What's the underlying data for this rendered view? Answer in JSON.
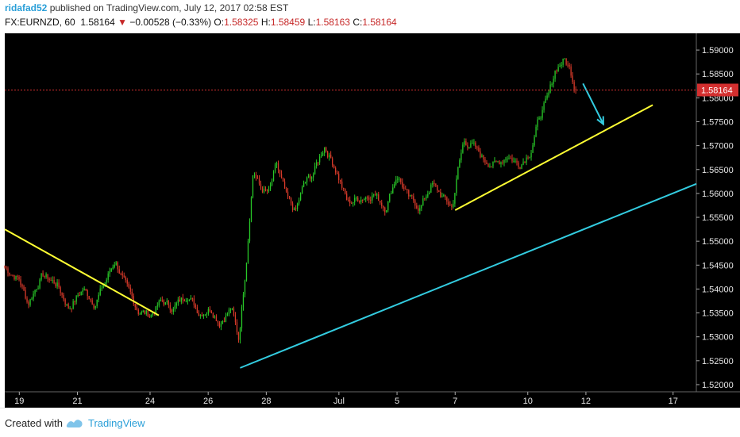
{
  "header": {
    "author": "ridafad52",
    "published": " published on TradingView.com, July 12, 2017 02:58 EST",
    "symbol": "FX:EURNZD, 60",
    "last": "1.58164",
    "arrow": "▼",
    "change": "−0.00528 (−0.33%)",
    "o_label": "O:",
    "o_value": "1.58325",
    "h_label": "H:",
    "h_value": "1.58459",
    "l_label": "L:",
    "l_value": "1.58163",
    "c_label": "C:",
    "c_value": "1.58164"
  },
  "footer": {
    "created_with": "Created with",
    "brand": "TradingView"
  },
  "colors": {
    "up": "#28c828",
    "down": "#d83a2a",
    "yellow_line": "#ffff33",
    "cyan_line": "#33cce0",
    "price_line": "#d32f2f"
  },
  "chart_data": {
    "type": "candlestick",
    "symbol": "FX:EURNZD",
    "interval": "60",
    "ylim": [
      1.5185,
      1.5935
    ],
    "y_ticks": [
      "1.59000",
      "1.58500",
      "1.58000",
      "1.57500",
      "1.57000",
      "1.56500",
      "1.56000",
      "1.55500",
      "1.55000",
      "1.54500",
      "1.54000",
      "1.53500",
      "1.53000",
      "1.52500",
      "1.52000"
    ],
    "x_ticks": [
      "19",
      "21",
      "24",
      "26",
      "28",
      "Jul",
      "5",
      "7",
      "10",
      "12",
      "17"
    ],
    "x_tick_positions": [
      19,
      21,
      23.5,
      25.5,
      27.5,
      30,
      32,
      34,
      36.5,
      38.5,
      41.5
    ],
    "xlim": [
      18.5,
      42.3
    ],
    "current_price": "1.58164",
    "price_path": [
      [
        18.5,
        1.5445
      ],
      [
        19.0,
        1.542
      ],
      [
        19.3,
        1.537
      ],
      [
        19.8,
        1.543
      ],
      [
        20.3,
        1.541
      ],
      [
        20.7,
        1.536
      ],
      [
        21.2,
        1.54
      ],
      [
        21.6,
        1.537
      ],
      [
        22.0,
        1.542
      ],
      [
        22.3,
        1.546
      ],
      [
        22.7,
        1.54
      ],
      [
        23.1,
        1.5355
      ],
      [
        23.5,
        1.5345
      ],
      [
        23.9,
        1.5375
      ],
      [
        24.3,
        1.536
      ],
      [
        24.8,
        1.539
      ],
      [
        25.2,
        1.535
      ],
      [
        25.6,
        1.536
      ],
      [
        25.9,
        1.533
      ],
      [
        26.3,
        1.536
      ],
      [
        26.55,
        1.5295
      ],
      [
        26.8,
        1.545
      ],
      [
        27.05,
        1.565
      ],
      [
        27.3,
        1.561
      ],
      [
        27.6,
        1.56
      ],
      [
        27.85,
        1.566
      ],
      [
        28.2,
        1.559
      ],
      [
        28.5,
        1.556
      ],
      [
        28.8,
        1.562
      ],
      [
        29.1,
        1.564
      ],
      [
        29.5,
        1.57
      ],
      [
        29.9,
        1.565
      ],
      [
        30.3,
        1.558
      ],
      [
        30.7,
        1.559
      ],
      [
        31.2,
        1.56
      ],
      [
        31.6,
        1.557
      ],
      [
        32.0,
        1.564
      ],
      [
        32.4,
        1.559
      ],
      [
        32.8,
        1.557
      ],
      [
        33.2,
        1.562
      ],
      [
        33.6,
        1.559
      ],
      [
        33.9,
        1.557
      ],
      [
        34.1,
        1.565
      ],
      [
        34.3,
        1.571
      ],
      [
        34.6,
        1.57
      ],
      [
        35.0,
        1.567
      ],
      [
        35.4,
        1.566
      ],
      [
        35.8,
        1.568
      ],
      [
        36.2,
        1.566
      ],
      [
        36.6,
        1.569
      ],
      [
        36.9,
        1.576
      ],
      [
        37.2,
        1.58
      ],
      [
        37.45,
        1.586
      ],
      [
        37.75,
        1.588
      ],
      [
        37.95,
        1.586
      ],
      [
        38.15,
        1.58164
      ]
    ],
    "annotations": [
      {
        "type": "trendline",
        "color": "yellow",
        "points": [
          [
            18.5,
            1.5525
          ],
          [
            23.8,
            1.5345
          ]
        ]
      },
      {
        "type": "trendline",
        "color": "yellow",
        "points": [
          [
            34.0,
            1.5565
          ],
          [
            40.8,
            1.5785
          ]
        ]
      },
      {
        "type": "trendline",
        "color": "cyan",
        "points": [
          [
            26.6,
            1.5235
          ],
          [
            42.3,
            1.562
          ]
        ]
      },
      {
        "type": "arrow",
        "color": "cyan",
        "points": [
          [
            38.4,
            1.583
          ],
          [
            39.1,
            1.5745
          ]
        ]
      },
      {
        "type": "horizontal_line",
        "color": "red",
        "style": "dotted",
        "y": 1.58164
      }
    ]
  }
}
